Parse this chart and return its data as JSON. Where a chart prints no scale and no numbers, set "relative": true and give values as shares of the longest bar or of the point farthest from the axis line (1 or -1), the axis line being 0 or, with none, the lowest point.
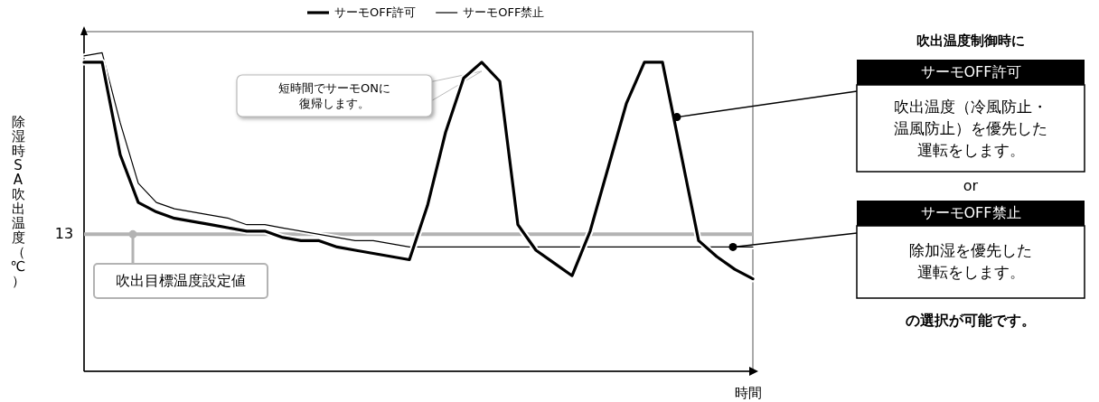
{
  "chart_data": {
    "type": "line",
    "relative": true,
    "xlabel": "時間",
    "ylabel": "除湿時SA吹出温度（℃）",
    "legend": "top",
    "categories": [
      null,
      null,
      null,
      null,
      null,
      null,
      null,
      null,
      null,
      null,
      null,
      null,
      null,
      null,
      null,
      null,
      null,
      null,
      null,
      null,
      null,
      null,
      null,
      null,
      null,
      null,
      null,
      null,
      null,
      null,
      null,
      null,
      null,
      null,
      null,
      null,
      null,
      null
    ],
    "series": [
      {
        "name": "サーモOFF許可",
        "color": "#000000",
        "values": [
          0.97,
          0.97,
          0.68,
          0.53,
          0.5,
          0.48,
          0.47,
          0.46,
          0.45,
          0.44,
          0.44,
          0.42,
          0.41,
          0.41,
          0.39,
          0.38,
          0.37,
          0.36,
          0.35,
          0.52,
          0.75,
          0.92,
          0.97,
          0.91,
          0.46,
          0.38,
          0.34,
          0.3,
          0.44,
          0.64,
          0.84,
          0.97,
          0.97,
          0.69,
          0.41,
          0.36,
          0.32,
          0.29
        ]
      },
      {
        "name": "サーモOFF禁止",
        "color": "#000000",
        "values": [
          0.99,
          1,
          0.78,
          0.59,
          0.53,
          0.51,
          0.5,
          0.49,
          0.48,
          0.46,
          0.46,
          0.45,
          0.44,
          0.43,
          0.42,
          0.41,
          0.41,
          0.4,
          0.39,
          0.39,
          0.39,
          0.39,
          0.39,
          0.39,
          0.39,
          0.39,
          0.39,
          0.39,
          0.39,
          0.39,
          0.39,
          0.39,
          0.39,
          0.39,
          0.39,
          0.39,
          0.39,
          0.39
        ]
      }
    ],
    "ref_lines": [
      {
        "axis": "y",
        "value": 0.43,
        "label": "吹出目標温度設定値",
        "color": "#b3b3b3"
      }
    ],
    "annotations": [
      "13",
      "短時間でサーモONに復帰します。",
      "吹出温度制御時に",
      "サーモOFF許可",
      "吹出温度（冷風防止・温風防止）を優先した運転をします。",
      "or",
      "サーモOFF禁止",
      "除加湿を優先した運転をします。",
      "の選択が可能です。"
    ]
  }
}
